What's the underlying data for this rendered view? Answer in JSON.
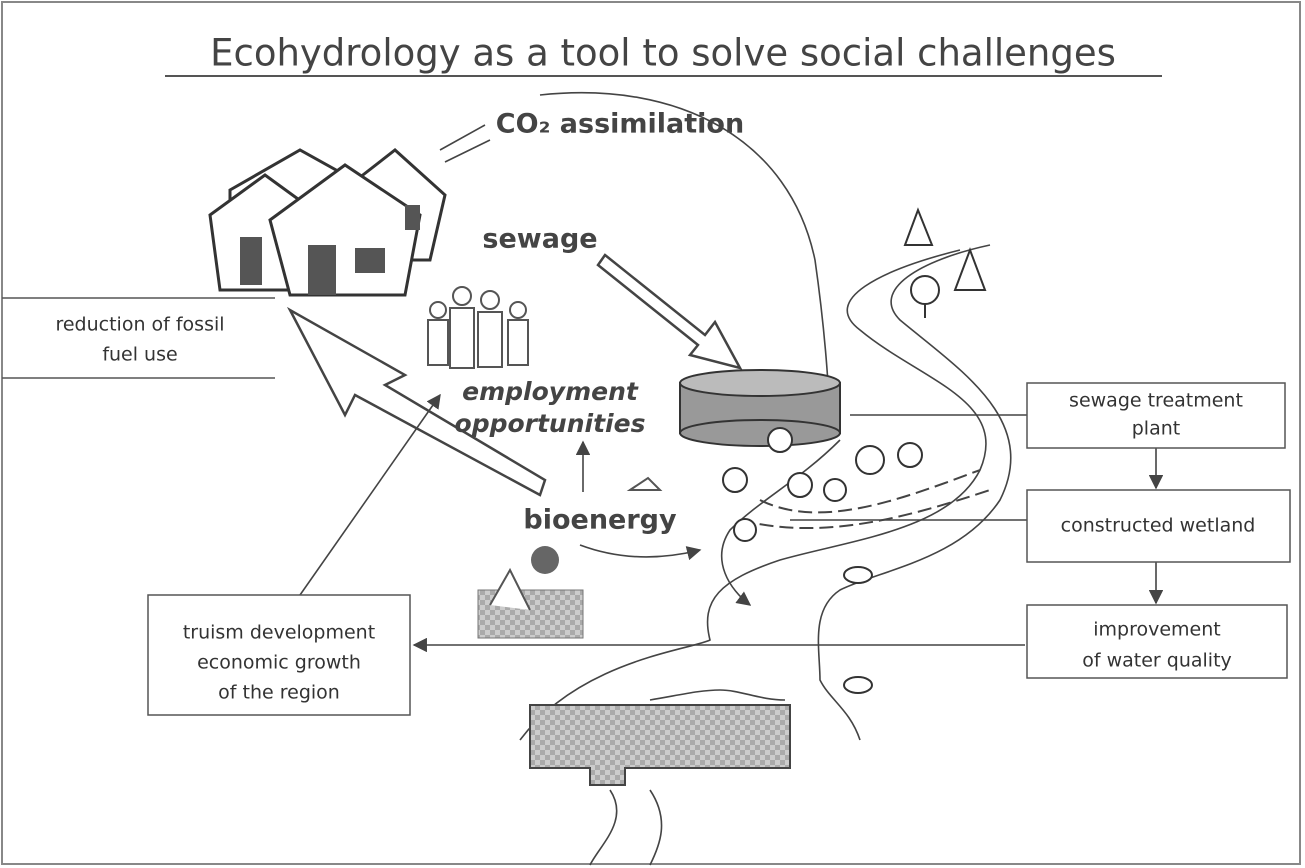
{
  "title": "Ecohydrology as a tool to solve social challenges",
  "labels": {
    "co2": "CO₂ assimilation",
    "sewage": "sewage",
    "employment": [
      "employment",
      "opportunities"
    ],
    "bioenergy": "bioenergy"
  },
  "boxes": {
    "fossil": [
      "reduction of fossil",
      "fuel use"
    ],
    "treatment": [
      "sewage treatment",
      "plant"
    ],
    "wetland": [
      "constructed wetland"
    ],
    "water": [
      "improvement",
      "of water quality"
    ],
    "tourism": [
      "truism development",
      "economic growth",
      "of the region"
    ]
  }
}
